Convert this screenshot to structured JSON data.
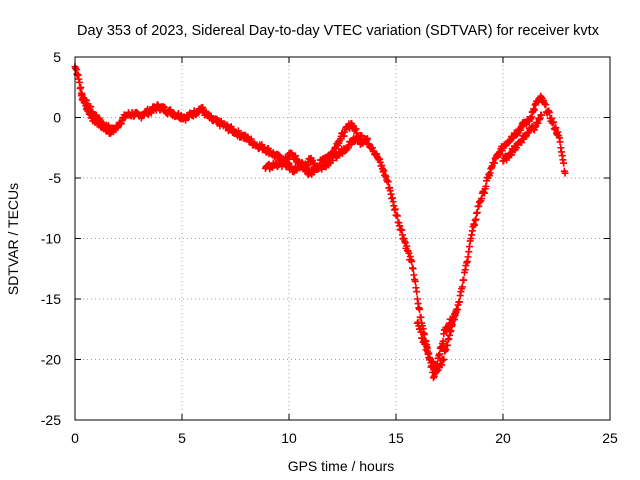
{
  "chart_data": {
    "type": "scatter",
    "title": "Day 353 of 2023, Sidereal Day-to-day VTEC variation (SDTVAR) for receiver kvtx",
    "xlabel": "GPS time / hours",
    "ylabel": "SDTVAR / TECUs",
    "xlim": [
      0,
      25
    ],
    "ylim": [
      -25,
      5
    ],
    "x_ticks": [
      0,
      5,
      10,
      15,
      20,
      25
    ],
    "y_ticks": [
      5,
      0,
      -5,
      -10,
      -15,
      -20,
      -25
    ],
    "grid": true,
    "marker": "plus",
    "color": "#ff0000",
    "series": [
      {
        "x": [
          0.0,
          0.15,
          0.3,
          0.5,
          0.8,
          1.1,
          1.4,
          1.7,
          1.9,
          2.1,
          2.4,
          2.7,
          3.0,
          3.3,
          3.6,
          3.9,
          4.4,
          4.8,
          5.2,
          5.6,
          5.9,
          6.1,
          6.4,
          6.8,
          7.2,
          7.5,
          7.8,
          8.1,
          8.4,
          8.8,
          9.1,
          9.4,
          9.8,
          10.1,
          10.4,
          10.7,
          11.0,
          11.3,
          11.6,
          12.0,
          12.3,
          12.6,
          12.9,
          13.1,
          13.3,
          13.6,
          13.9,
          14.2,
          14.5,
          14.7,
          14.9,
          15.8,
          16.0,
          16.2,
          16.4,
          16.6,
          16.75,
          16.9,
          17.1,
          17.3,
          17.5,
          17.7,
          17.9,
          18.1,
          18.3,
          18.5,
          18.7,
          18.9,
          19.1,
          19.3,
          19.5,
          19.8,
          20.1,
          20.4,
          20.7,
          21.0,
          21.2,
          21.4,
          21.6,
          21.8,
          22.6,
          22.7,
          22.8,
          22.9
        ],
        "y": [
          4.2,
          3.5,
          2.0,
          1.0,
          0.0,
          -0.5,
          -0.9,
          -1.2,
          -0.9,
          -0.4,
          0.2,
          0.3,
          0.1,
          0.4,
          0.6,
          0.9,
          0.5,
          0.2,
          0.0,
          0.4,
          0.8,
          0.3,
          -0.2,
          -0.5,
          -0.9,
          -1.2,
          -1.5,
          -1.8,
          -2.2,
          -2.5,
          -2.8,
          -3.2,
          -3.6,
          -3.0,
          -3.6,
          -4.0,
          -3.5,
          -4.2,
          -3.4,
          -3.0,
          -2.0,
          -1.2,
          -0.5,
          -1.0,
          -2.0,
          -1.8,
          -2.5,
          -3.5,
          -4.8,
          -5.8,
          -7.3,
          -12.5,
          -15.0,
          -17.0,
          -18.5,
          -20.0,
          -21.5,
          -20.5,
          -19.0,
          -17.5,
          -17.0,
          -16.5,
          -15.5,
          -14.0,
          -12.0,
          -10.0,
          -8.5,
          -7.0,
          -6.2,
          -5.0,
          -4.0,
          -3.0,
          -2.2,
          -1.6,
          -1.1,
          -0.5,
          -0.3,
          0.5,
          1.3,
          1.6,
          -1.5,
          -2.5,
          -3.5,
          -4.6
        ]
      },
      {
        "x": [
          0.3,
          0.6,
          0.9,
          1.2,
          1.5,
          1.8,
          8.9,
          9.2,
          9.5,
          9.9,
          10.2,
          10.6,
          11.0,
          11.4,
          11.8,
          12.2,
          12.6,
          13.0,
          13.4,
          16.0,
          16.3,
          16.6,
          16.9,
          17.2,
          17.5,
          17.8,
          20.0,
          20.3,
          20.6,
          20.9,
          21.2,
          21.5,
          21.8
        ],
        "y": [
          1.8,
          1.0,
          0.2,
          -0.3,
          -0.8,
          -1.0,
          -4.2,
          -4.0,
          -3.8,
          -3.9,
          -4.3,
          -4.1,
          -4.6,
          -4.2,
          -3.8,
          -3.2,
          -2.6,
          -1.8,
          -1.5,
          -17.0,
          -18.5,
          -20.0,
          -21.0,
          -20.0,
          -18.0,
          -16.0,
          -3.6,
          -3.0,
          -2.5,
          -1.8,
          -1.2,
          -0.8,
          0.2
        ]
      }
    ]
  }
}
